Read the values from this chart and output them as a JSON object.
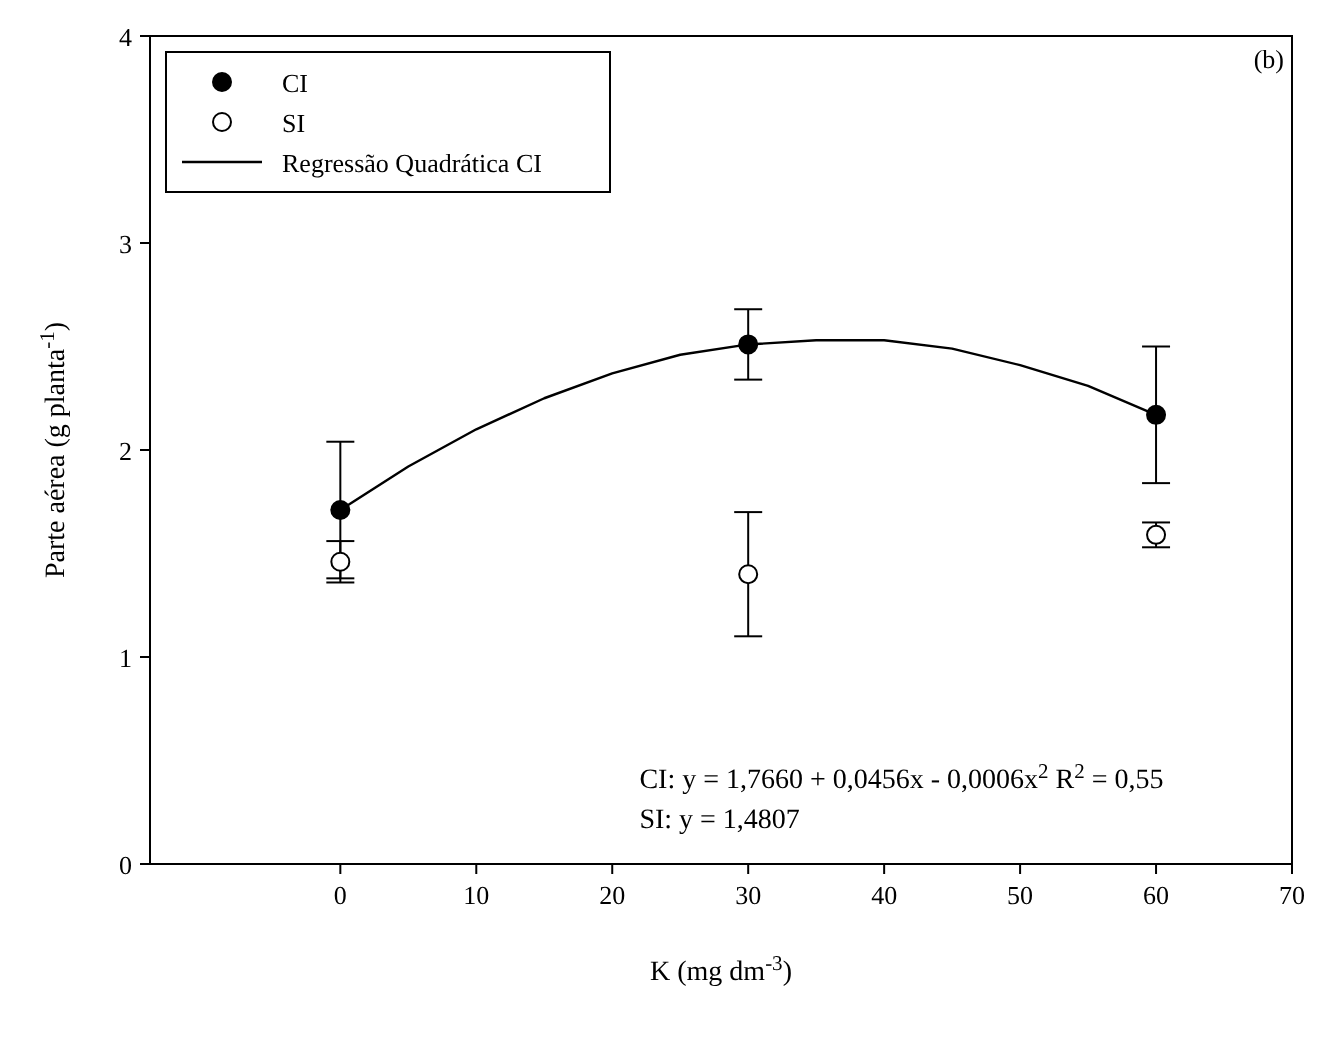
{
  "chart_data": {
    "type": "scatter",
    "xlabel": "K (mg dm$^{-3}$)",
    "ylabel": "Parte aérea (g planta$^{-1}$)",
    "xlim": [
      -14,
      70
    ],
    "xticks": [
      0,
      10,
      20,
      30,
      40,
      50,
      60,
      70
    ],
    "ylim": [
      0,
      4
    ],
    "yticks": [
      0,
      1,
      2,
      3,
      4
    ],
    "grid": false,
    "legend": "top left",
    "marker": "circle",
    "series": [
      {
        "name": "CI",
        "color": "#000000",
        "x": [
          0,
          30,
          60
        ],
        "values": [
          1.71,
          2.51,
          2.17
        ],
        "errors": [
          0.33,
          0.17,
          0.33
        ]
      },
      {
        "name": "SI",
        "color": "#ffffff",
        "x": [
          0,
          30,
          60
        ],
        "values": [
          1.46,
          1.4,
          1.59
        ],
        "errors": [
          0.1,
          0.3,
          0.06
        ]
      },
      {
        "name": "Regressão Quadrática CI",
        "type": "line",
        "color": "#000000",
        "line_style": "solid",
        "marker": "none",
        "x": [
          0,
          5,
          10,
          15,
          20,
          25,
          30,
          35,
          40,
          45,
          50,
          55,
          60
        ],
        "values": [
          1.71,
          1.92,
          2.1,
          2.25,
          2.37,
          2.46,
          2.51,
          2.53,
          2.53,
          2.49,
          2.41,
          2.31,
          2.17
        ]
      }
    ],
    "annotations": [
      "(b)",
      "CI: y = 1,7660 + 0,0456x - 0,0006x$^{2}$  R$^{2}$ = 0,55",
      "SI: y = 1,4807"
    ]
  }
}
